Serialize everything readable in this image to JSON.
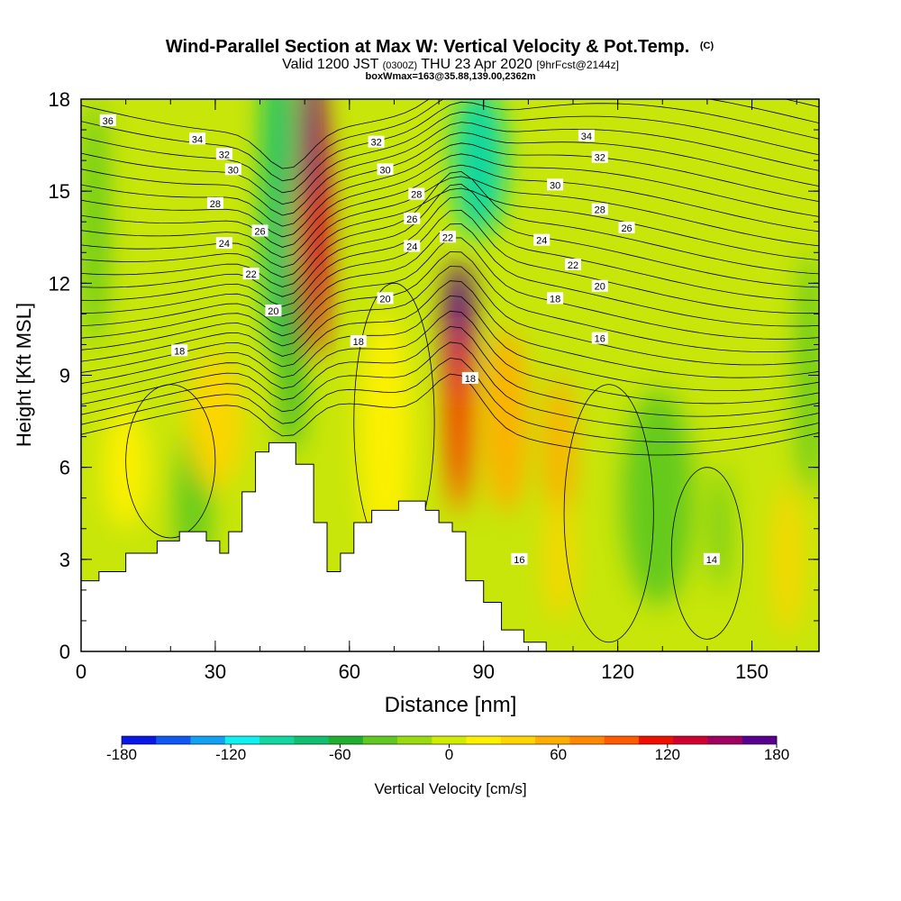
{
  "header": {
    "title": "Wind-Parallel Section at Max W: Vertical Velocity & Pot.Temp.",
    "title_mark": "(C)",
    "valid_prefix": "Valid 1200 JST",
    "valid_z": "(0300Z)",
    "valid_date": "THU 23 Apr 2020",
    "valid_fcst": "[9hrFcst@2144z]",
    "subtitle2": "boxWmax=163@35.88,139.00,2362m"
  },
  "chart_data": {
    "type": "heatmap",
    "xlabel": "Distance [nm]",
    "ylabel": "Height [Kft MSL]",
    "xlim": [
      0,
      165
    ],
    "ylim": [
      0,
      18
    ],
    "x_ticks": [
      0,
      30,
      60,
      90,
      120,
      150
    ],
    "y_ticks": [
      0,
      3,
      6,
      9,
      12,
      15,
      18
    ],
    "colorbar": {
      "label": "Vertical Velocity [cm/s]",
      "min": -180,
      "max": 180,
      "tick_labels": [
        -180,
        -120,
        -60,
        0,
        60,
        120,
        180
      ],
      "colors": [
        "#0a18e6",
        "#1058f0",
        "#12a0f0",
        "#10f0f0",
        "#10d8a0",
        "#10c070",
        "#20b030",
        "#60c820",
        "#98dc10",
        "#d0ec00",
        "#fff000",
        "#ffd400",
        "#ffae00",
        "#ff8800",
        "#ff5a00",
        "#f01000",
        "#d00030",
        "#a00060",
        "#5a0090"
      ]
    },
    "terrain_profile": [
      [
        0,
        2.3
      ],
      [
        4,
        2.3
      ],
      [
        4,
        2.6
      ],
      [
        10,
        2.6
      ],
      [
        10,
        3.2
      ],
      [
        17,
        3.2
      ],
      [
        17,
        3.6
      ],
      [
        22,
        3.6
      ],
      [
        22,
        3.9
      ],
      [
        28,
        3.9
      ],
      [
        28,
        3.6
      ],
      [
        31,
        3.6
      ],
      [
        31,
        3.2
      ],
      [
        33,
        3.2
      ],
      [
        33,
        3.9
      ],
      [
        36,
        3.9
      ],
      [
        36,
        5.2
      ],
      [
        39,
        5.2
      ],
      [
        39,
        6.5
      ],
      [
        42,
        6.5
      ],
      [
        42,
        6.8
      ],
      [
        48,
        6.8
      ],
      [
        48,
        6.1
      ],
      [
        52,
        6.1
      ],
      [
        52,
        4.2
      ],
      [
        55,
        4.2
      ],
      [
        55,
        2.6
      ],
      [
        58,
        2.6
      ],
      [
        58,
        3.2
      ],
      [
        61,
        3.2
      ],
      [
        61,
        4.2
      ],
      [
        65,
        4.2
      ],
      [
        65,
        4.6
      ],
      [
        71,
        4.6
      ],
      [
        71,
        4.9
      ],
      [
        77,
        4.9
      ],
      [
        77,
        4.6
      ],
      [
        80,
        4.6
      ],
      [
        80,
        4.2
      ],
      [
        83,
        4.2
      ],
      [
        83,
        3.9
      ],
      [
        86,
        3.9
      ],
      [
        86,
        2.3
      ],
      [
        90,
        2.3
      ],
      [
        90,
        1.6
      ],
      [
        94,
        1.6
      ],
      [
        94,
        0.7
      ],
      [
        99,
        0.7
      ],
      [
        99,
        0.3
      ],
      [
        104,
        0.3
      ],
      [
        104,
        0
      ],
      [
        165,
        0
      ]
    ],
    "w_features": [
      {
        "x": 52,
        "y": 14,
        "rx": 3.5,
        "ry": 4.5,
        "w": 130
      },
      {
        "x": 51.5,
        "y": 17,
        "rx": 2.5,
        "ry": 3,
        "w": 160
      },
      {
        "x": 84.5,
        "y": 9.8,
        "rx": 3.5,
        "ry": 3,
        "w": 165
      },
      {
        "x": 84.5,
        "y": 8,
        "rx": 3,
        "ry": 3.5,
        "w": 100
      },
      {
        "x": 95,
        "y": 7.5,
        "rx": 5,
        "ry": 3,
        "w": 60
      },
      {
        "x": 107,
        "y": 6.5,
        "rx": 3.5,
        "ry": 2.5,
        "w": 55
      },
      {
        "x": 107,
        "y": 3,
        "rx": 3,
        "ry": 2,
        "w": 40
      },
      {
        "x": 44,
        "y": 15.5,
        "rx": 3.5,
        "ry": 6,
        "w": -70
      },
      {
        "x": 47,
        "y": 9.5,
        "rx": 2.5,
        "ry": 3,
        "w": -50
      },
      {
        "x": 89,
        "y": 16,
        "rx": 6,
        "ry": 2.5,
        "w": -90
      },
      {
        "x": 129,
        "y": 5,
        "rx": 8,
        "ry": 3.5,
        "w": -40
      },
      {
        "x": 3,
        "y": 14,
        "rx": 3,
        "ry": 4,
        "w": -35
      },
      {
        "x": 163,
        "y": 9,
        "rx": 3,
        "ry": 4,
        "w": -30
      },
      {
        "x": 25,
        "y": 4.8,
        "rx": 4,
        "ry": 2.5,
        "w": -30
      },
      {
        "x": 143,
        "y": 4,
        "rx": 2,
        "ry": 2,
        "w": -40
      },
      {
        "x": 10,
        "y": 6,
        "rx": 5,
        "ry": 2,
        "w": 15
      },
      {
        "x": 30,
        "y": 7.5,
        "rx": 6,
        "ry": 2.2,
        "w": 30
      },
      {
        "x": 68,
        "y": 7,
        "rx": 6,
        "ry": 4,
        "w": 20
      },
      {
        "x": 158,
        "y": 3,
        "rx": 3,
        "ry": 2.5,
        "w": 40
      }
    ],
    "theta_labels": [
      {
        "x": 6,
        "y": 17.3,
        "v": "36"
      },
      {
        "x": 26,
        "y": 16.7,
        "v": "34"
      },
      {
        "x": 32,
        "y": 16.2,
        "v": "32"
      },
      {
        "x": 34,
        "y": 15.7,
        "v": "30"
      },
      {
        "x": 30,
        "y": 14.6,
        "v": "28"
      },
      {
        "x": 40,
        "y": 13.7,
        "v": "26"
      },
      {
        "x": 32,
        "y": 13.3,
        "v": "24"
      },
      {
        "x": 38,
        "y": 12.3,
        "v": "22"
      },
      {
        "x": 43,
        "y": 11.1,
        "v": "20"
      },
      {
        "x": 22,
        "y": 9.8,
        "v": "18"
      },
      {
        "x": 66,
        "y": 16.6,
        "v": "32"
      },
      {
        "x": 68,
        "y": 15.7,
        "v": "30"
      },
      {
        "x": 75,
        "y": 14.9,
        "v": "28"
      },
      {
        "x": 74,
        "y": 14.1,
        "v": "26"
      },
      {
        "x": 74,
        "y": 13.2,
        "v": "24"
      },
      {
        "x": 82,
        "y": 13.5,
        "v": "22"
      },
      {
        "x": 68,
        "y": 11.5,
        "v": "20"
      },
      {
        "x": 62,
        "y": 10.1,
        "v": "18"
      },
      {
        "x": 87,
        "y": 8.9,
        "v": "18"
      },
      {
        "x": 113,
        "y": 16.8,
        "v": "34"
      },
      {
        "x": 116,
        "y": 16.1,
        "v": "32"
      },
      {
        "x": 106,
        "y": 15.2,
        "v": "30"
      },
      {
        "x": 116,
        "y": 14.4,
        "v": "28"
      },
      {
        "x": 122,
        "y": 13.8,
        "v": "26"
      },
      {
        "x": 103,
        "y": 13.4,
        "v": "24"
      },
      {
        "x": 110,
        "y": 12.6,
        "v": "22"
      },
      {
        "x": 116,
        "y": 11.9,
        "v": "20"
      },
      {
        "x": 106,
        "y": 11.5,
        "v": "18"
      },
      {
        "x": 116,
        "y": 10.2,
        "v": "16"
      },
      {
        "x": 98,
        "y": 3,
        "v": "16"
      },
      {
        "x": 141,
        "y": 3,
        "v": "14"
      }
    ]
  }
}
